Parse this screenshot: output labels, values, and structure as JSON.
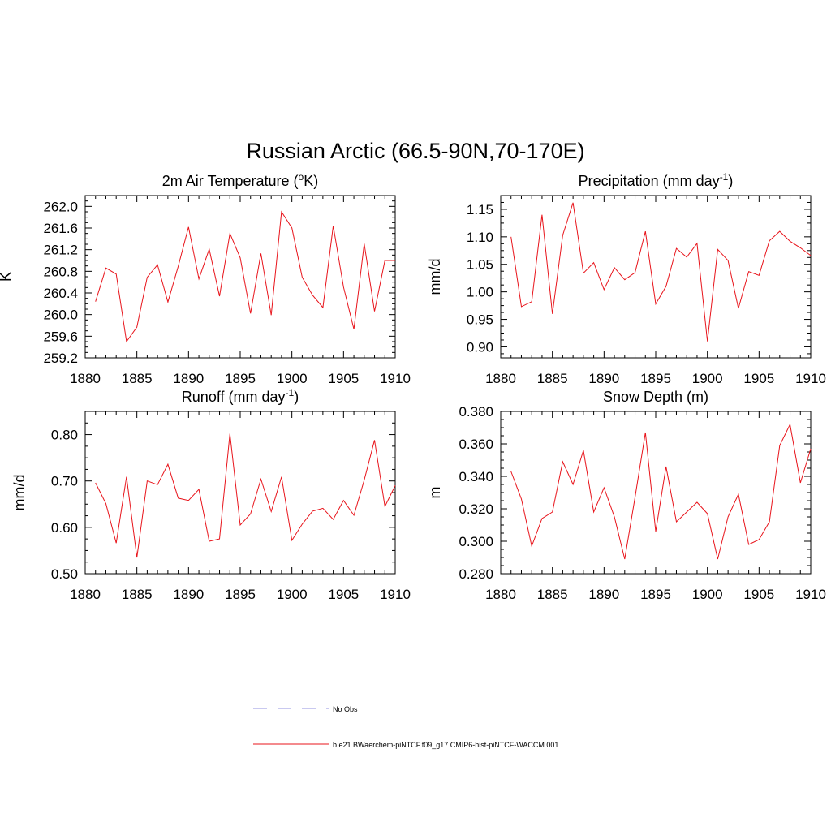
{
  "figure": {
    "title": "Russian Arctic (66.5-90N,70-170E)"
  },
  "colors": {
    "model_line": "#e8141b",
    "obs_line": "#a9a9e8",
    "axis": "#000000"
  },
  "legend": {
    "placement": "bottom-center",
    "items": [
      {
        "label": "No Obs",
        "style": "dashed",
        "color": "#a9a9e8"
      },
      {
        "label": "b.e21.BWaerchem-piNTCF.f09_g17.CMIP6-hist-piNTCF-WACCM.001",
        "style": "solid",
        "color": "#e8141b"
      }
    ]
  },
  "chart_data": [
    {
      "type": "line",
      "title_main": "2m Air Temperature (",
      "title_sup": "o",
      "title_tail": "K)",
      "ylabel": "K",
      "xlabel": "",
      "xlim": [
        1880,
        1910
      ],
      "ylim": [
        259.2,
        262.2
      ],
      "xticks": [
        1880,
        1885,
        1890,
        1895,
        1900,
        1905,
        1910
      ],
      "xtick_labels": [
        "1880",
        "1885",
        "1890",
        "1895",
        "1900",
        "1905",
        "1910"
      ],
      "yticks": [
        259.2,
        259.6,
        260.0,
        260.4,
        260.8,
        261.2,
        261.6,
        262.0
      ],
      "ytick_labels": [
        "259.2",
        "259.6",
        "260.0",
        "260.4",
        "260.8",
        "261.2",
        "261.6",
        "262.0"
      ],
      "x": [
        1881,
        1882,
        1883,
        1884,
        1885,
        1886,
        1887,
        1888,
        1889,
        1890,
        1891,
        1892,
        1893,
        1894,
        1895,
        1896,
        1897,
        1898,
        1899,
        1900,
        1901,
        1902,
        1903,
        1904,
        1905,
        1906,
        1907,
        1908,
        1909,
        1910
      ],
      "values": [
        260.24,
        260.86,
        260.75,
        259.5,
        259.77,
        260.69,
        260.92,
        260.23,
        260.89,
        261.62,
        260.66,
        261.21,
        260.34,
        261.5,
        261.05,
        260.02,
        261.13,
        259.99,
        261.9,
        261.6,
        260.69,
        260.36,
        260.13,
        261.64,
        260.51,
        259.73,
        261.31,
        260.06,
        261.0,
        261.0
      ]
    },
    {
      "type": "line",
      "title_main": "Precipitation (mm day",
      "title_sup": "-1",
      "title_tail": ")",
      "ylabel": "mm/d",
      "xlabel": "",
      "xlim": [
        1880,
        1910
      ],
      "ylim": [
        0.88,
        1.175
      ],
      "xticks": [
        1880,
        1885,
        1890,
        1895,
        1900,
        1905,
        1910
      ],
      "xtick_labels": [
        "1880",
        "1885",
        "1890",
        "1895",
        "1900",
        "1905",
        "1910"
      ],
      "yticks": [
        0.9,
        0.95,
        1.0,
        1.05,
        1.1,
        1.15
      ],
      "ytick_labels": [
        "0.90",
        "0.95",
        "1.00",
        "1.05",
        "1.10",
        "1.15"
      ],
      "x": [
        1881,
        1882,
        1883,
        1884,
        1885,
        1886,
        1887,
        1888,
        1889,
        1890,
        1891,
        1892,
        1893,
        1894,
        1895,
        1896,
        1897,
        1898,
        1899,
        1900,
        1901,
        1902,
        1903,
        1904,
        1905,
        1906,
        1907,
        1908,
        1909,
        1910
      ],
      "values": [
        1.1,
        0.973,
        0.982,
        1.14,
        0.96,
        1.103,
        1.162,
        1.034,
        1.053,
        1.004,
        1.044,
        1.022,
        1.035,
        1.11,
        0.978,
        1.01,
        1.079,
        1.063,
        1.088,
        0.91,
        1.077,
        1.057,
        0.97,
        1.037,
        1.03,
        1.093,
        1.11,
        1.092,
        1.08,
        1.066
      ]
    },
    {
      "type": "line",
      "title_main": "Runoff (mm day",
      "title_sup": "-1",
      "title_tail": ")",
      "ylabel": "mm/d",
      "xlabel": "",
      "xlim": [
        1880,
        1910
      ],
      "ylim": [
        0.5,
        0.85
      ],
      "xticks": [
        1880,
        1885,
        1890,
        1895,
        1900,
        1905,
        1910
      ],
      "xtick_labels": [
        "1880",
        "1885",
        "1890",
        "1895",
        "1900",
        "1905",
        "1910"
      ],
      "yticks": [
        0.5,
        0.6,
        0.7,
        0.8
      ],
      "ytick_labels": [
        "0.50",
        "0.60",
        "0.70",
        "0.80"
      ],
      "x": [
        1881,
        1882,
        1883,
        1884,
        1885,
        1886,
        1887,
        1888,
        1889,
        1890,
        1891,
        1892,
        1893,
        1894,
        1895,
        1896,
        1897,
        1898,
        1899,
        1900,
        1901,
        1902,
        1903,
        1904,
        1905,
        1906,
        1907,
        1908,
        1909,
        1910
      ],
      "values": [
        0.696,
        0.651,
        0.566,
        0.709,
        0.535,
        0.7,
        0.692,
        0.736,
        0.663,
        0.658,
        0.682,
        0.57,
        0.575,
        0.802,
        0.605,
        0.629,
        0.704,
        0.634,
        0.709,
        0.572,
        0.607,
        0.635,
        0.641,
        0.617,
        0.658,
        0.626,
        0.702,
        0.788,
        0.645,
        0.69
      ]
    },
    {
      "type": "line",
      "title_main": "Snow Depth (m)",
      "title_sup": "",
      "title_tail": "",
      "ylabel": "m",
      "xlabel": "",
      "xlim": [
        1880,
        1910
      ],
      "ylim": [
        0.28,
        0.38
      ],
      "xticks": [
        1880,
        1885,
        1890,
        1895,
        1900,
        1905,
        1910
      ],
      "xtick_labels": [
        "1880",
        "1885",
        "1890",
        "1895",
        "1900",
        "1905",
        "1910"
      ],
      "yticks": [
        0.28,
        0.3,
        0.32,
        0.34,
        0.36,
        0.38
      ],
      "ytick_labels": [
        "0.280",
        "0.300",
        "0.320",
        "0.340",
        "0.360",
        "0.380"
      ],
      "x": [
        1881,
        1882,
        1883,
        1884,
        1885,
        1886,
        1887,
        1888,
        1889,
        1890,
        1891,
        1892,
        1893,
        1894,
        1895,
        1896,
        1897,
        1898,
        1899,
        1900,
        1901,
        1902,
        1903,
        1904,
        1905,
        1906,
        1907,
        1908,
        1909,
        1910
      ],
      "values": [
        0.343,
        0.326,
        0.297,
        0.314,
        0.318,
        0.349,
        0.335,
        0.356,
        0.318,
        0.333,
        0.315,
        0.289,
        0.327,
        0.367,
        0.306,
        0.346,
        0.312,
        0.318,
        0.324,
        0.317,
        0.289,
        0.315,
        0.329,
        0.298,
        0.301,
        0.312,
        0.359,
        0.372,
        0.336,
        0.357
      ]
    }
  ]
}
